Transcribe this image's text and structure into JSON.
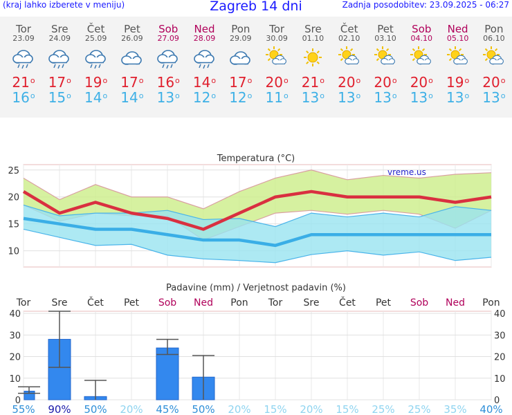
{
  "header": {
    "menu_note": "(kraj lahko izberete v meniju)",
    "title": "Zagreb 14 dni",
    "updated": "Zadnja posodobitev: 23.09.2025 - 06:27"
  },
  "days": [
    {
      "name": "Tor",
      "date": "23.09",
      "weekend": false,
      "icon": "rain-cloud-icon",
      "tmax": "21",
      "tmin": "16"
    },
    {
      "name": "Sre",
      "date": "24.09",
      "weekend": false,
      "icon": "rain-cloud-icon",
      "tmax": "17",
      "tmin": "15"
    },
    {
      "name": "Čet",
      "date": "25.09",
      "weekend": false,
      "icon": "rain-cloud-icon",
      "tmax": "19",
      "tmin": "14"
    },
    {
      "name": "Pet",
      "date": "26.09",
      "weekend": false,
      "icon": "cloud-icon",
      "tmax": "17",
      "tmin": "14"
    },
    {
      "name": "Sob",
      "date": "27.09",
      "weekend": true,
      "icon": "rain-cloud-icon",
      "tmax": "16",
      "tmin": "13"
    },
    {
      "name": "Ned",
      "date": "28.09",
      "weekend": true,
      "icon": "rain-cloud-icon",
      "tmax": "14",
      "tmin": "12"
    },
    {
      "name": "Pon",
      "date": "29.09",
      "weekend": false,
      "icon": "cloud-icon",
      "tmax": "17",
      "tmin": "12"
    },
    {
      "name": "Tor",
      "date": "30.09",
      "weekend": false,
      "icon": "sun-cloud-icon",
      "tmax": "20",
      "tmin": "11"
    },
    {
      "name": "Sre",
      "date": "01.10",
      "weekend": false,
      "icon": "sun-icon",
      "tmax": "21",
      "tmin": "13"
    },
    {
      "name": "Čet",
      "date": "02.10",
      "weekend": false,
      "icon": "sun-cloud-icon",
      "tmax": "20",
      "tmin": "13"
    },
    {
      "name": "Pet",
      "date": "03.10",
      "weekend": false,
      "icon": "sun-cloud-icon",
      "tmax": "20",
      "tmin": "13"
    },
    {
      "name": "Sob",
      "date": "04.10",
      "weekend": true,
      "icon": "sun-cloud-icon",
      "tmax": "20",
      "tmin": "13"
    },
    {
      "name": "Ned",
      "date": "05.10",
      "weekend": true,
      "icon": "sun-cloud-icon",
      "tmax": "19",
      "tmin": "13"
    },
    {
      "name": "Pon",
      "date": "06.10",
      "weekend": false,
      "icon": "sun-cloud-icon",
      "tmax": "20",
      "tmin": "13"
    }
  ],
  "chart_data": [
    {
      "type": "line",
      "title": "Temperatura (°C)",
      "watermark": "vreme.us",
      "x": [
        "23.09",
        "24.09",
        "25.09",
        "26.09",
        "27.09",
        "28.09",
        "29.09",
        "30.09",
        "01.10",
        "02.10",
        "03.10",
        "04.10",
        "05.10",
        "06.10"
      ],
      "ylim": [
        7,
        26
      ],
      "yticks": [
        10,
        15,
        20,
        25
      ],
      "grid": true,
      "series": [
        {
          "color": "#d93040",
          "values": [
            21,
            17,
            19,
            17,
            16,
            14,
            17,
            20,
            21,
            20,
            20,
            20,
            19,
            20
          ]
        },
        {
          "color": "#3aaee6",
          "values": [
            16,
            15,
            14,
            14,
            13,
            12,
            12,
            11,
            13,
            13,
            13,
            13,
            13,
            13
          ]
        }
      ],
      "bands": [
        {
          "color": "#ccee88",
          "upper": [
            23.5,
            19.5,
            22.3,
            20,
            20,
            17.8,
            21,
            23.5,
            25,
            23.2,
            24,
            23.5,
            24.2,
            24.5
          ],
          "lower": [
            18.5,
            15.5,
            17,
            16.5,
            16.5,
            12,
            14.5,
            17,
            17.5,
            16.8,
            17.5,
            16.8,
            14.2,
            17.5
          ]
        },
        {
          "color": "#99e4f0",
          "upper": [
            18.5,
            16.5,
            17,
            17,
            17.5,
            15.8,
            16,
            14.5,
            17,
            16.3,
            17,
            16.3,
            18.2,
            17.5
          ],
          "lower": [
            14,
            12.5,
            11,
            11.2,
            9.2,
            8.5,
            8.2,
            7.8,
            9.3,
            10,
            9.2,
            9.8,
            8.2,
            8.8
          ]
        }
      ]
    },
    {
      "type": "bar",
      "title": "Padavine (mm) / Verjetnost padavin (%)",
      "categories": [
        "Tor",
        "Sre",
        "Čet",
        "Pet",
        "Sob",
        "Ned",
        "Pon",
        "Tor",
        "Sre",
        "Čet",
        "Pet",
        "Sob",
        "Ned",
        "Pon"
      ],
      "weekend": [
        false,
        false,
        false,
        false,
        true,
        true,
        false,
        false,
        false,
        false,
        false,
        true,
        true,
        false
      ],
      "values": [
        4,
        28,
        1.5,
        0,
        24,
        10.5,
        0,
        0,
        0,
        0,
        0,
        0,
        0,
        0
      ],
      "error_low": [
        3,
        15,
        0,
        0,
        21,
        0,
        0,
        0,
        0,
        0,
        0,
        0,
        0,
        0
      ],
      "error_high": [
        6,
        41,
        9,
        0,
        28,
        20.5,
        0,
        0,
        0,
        0,
        0,
        0,
        0,
        0
      ],
      "probabilities": [
        "55%",
        "90%",
        "50%",
        "20%",
        "45%",
        "50%",
        "20%",
        "15%",
        "20%",
        "15%",
        "25%",
        "25%",
        "35%",
        "40%"
      ],
      "ylim": [
        0,
        41
      ],
      "yticks": [
        0,
        10,
        20,
        30,
        40
      ],
      "grid": true
    }
  ]
}
